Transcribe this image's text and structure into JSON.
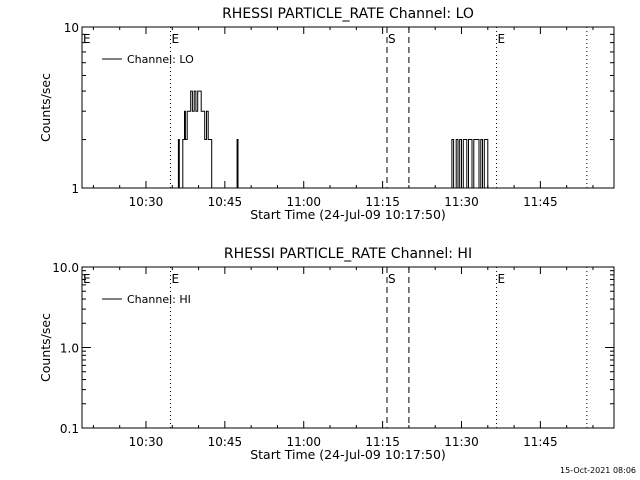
{
  "chart_data": [
    {
      "type": "line",
      "title": "RHESSI PARTICLE_RATE Channel: LO",
      "xlabel": "Start Time (24-Jul-09 10:17:50)",
      "ylabel": "Counts/sec",
      "yscale": "log",
      "xlim": [
        "10:17:50",
        "11:59:00"
      ],
      "ylim": [
        1,
        10
      ],
      "x_ticks": [
        "10:30",
        "10:45",
        "11:00",
        "11:15",
        "11:30",
        "11:45"
      ],
      "y_ticks": [
        "1",
        "10"
      ],
      "legend": {
        "position": "top-left",
        "entries": [
          "Channel: LO"
        ]
      },
      "annotations": [
        {
          "text": "E",
          "time": "10:17:50",
          "style": "dotted"
        },
        {
          "text": "E",
          "time": "10:34:40",
          "style": "dotted"
        },
        {
          "text": "S",
          "time": "11:15:50",
          "style": "dashed"
        },
        {
          "text": "",
          "time": "11:20:00",
          "style": "dashed"
        },
        {
          "text": "E",
          "time": "11:36:40",
          "style": "dotted"
        },
        {
          "text": "",
          "time": "11:53:50",
          "style": "dotted"
        }
      ],
      "series": [
        {
          "name": "Channel: LO",
          "x": [
            "10:36:00",
            "10:36:10",
            "10:36:20",
            "10:36:40",
            "10:37:00",
            "10:37:20",
            "10:37:30",
            "10:37:50",
            "10:38:10",
            "10:38:30",
            "10:38:50",
            "10:39:10",
            "10:39:30",
            "10:39:50",
            "10:40:10",
            "10:40:30",
            "10:40:50",
            "10:41:10",
            "10:41:30",
            "10:41:50",
            "10:42:10",
            "10:42:30",
            "10:42:50",
            "10:43:10",
            "10:43:20",
            "10:43:30",
            "10:47:10",
            "10:47:20",
            "10:47:30",
            "10:47:40",
            "10:48:10",
            "11:28:00",
            "11:28:10",
            "11:28:30",
            "11:28:40",
            "11:29:00",
            "11:29:20",
            "11:29:40",
            "11:30:00",
            "11:30:20",
            "11:30:40",
            "11:31:00",
            "11:31:20",
            "11:31:40",
            "11:32:00",
            "11:32:20",
            "11:32:40",
            "11:33:00",
            "11:33:20",
            "11:33:40",
            "11:34:00",
            "11:34:20",
            "11:34:40",
            "11:35:00",
            "11:35:20"
          ],
          "values": [
            1,
            2,
            1,
            1,
            2,
            3,
            2,
            3,
            3,
            4,
            3,
            4,
            3,
            4,
            4,
            3,
            3,
            2,
            3,
            2,
            2,
            1,
            1,
            1,
            1,
            1,
            1,
            2,
            1,
            1,
            1,
            1,
            2,
            1,
            1,
            2,
            1,
            2,
            1,
            2,
            2,
            1,
            2,
            2,
            1,
            2,
            2,
            2,
            1,
            2,
            1,
            2,
            2,
            1,
            1
          ]
        }
      ]
    },
    {
      "type": "line",
      "title": "RHESSI PARTICLE_RATE Channel: HI",
      "xlabel": "Start Time (24-Jul-09 10:17:50)",
      "ylabel": "Counts/sec",
      "yscale": "log",
      "xlim": [
        "10:17:50",
        "11:59:00"
      ],
      "ylim": [
        0.1,
        10
      ],
      "x_ticks": [
        "10:30",
        "10:45",
        "11:00",
        "11:15",
        "11:30",
        "11:45"
      ],
      "y_ticks": [
        "0.1",
        "1.0",
        "10.0"
      ],
      "legend": {
        "position": "top-left",
        "entries": [
          "Channel: HI"
        ]
      },
      "annotations": [
        {
          "text": "E",
          "time": "10:17:50",
          "style": "dotted"
        },
        {
          "text": "E",
          "time": "10:34:40",
          "style": "dotted"
        },
        {
          "text": "S",
          "time": "11:15:50",
          "style": "dashed"
        },
        {
          "text": "",
          "time": "11:20:00",
          "style": "dashed"
        },
        {
          "text": "E",
          "time": "11:36:40",
          "style": "dotted"
        },
        {
          "text": "",
          "time": "11:53:50",
          "style": "dotted"
        }
      ],
      "series": [
        {
          "name": "Channel: HI",
          "x": [],
          "values": []
        }
      ]
    }
  ],
  "footer": {
    "timestamp": "15-Oct-2021 08:06"
  }
}
